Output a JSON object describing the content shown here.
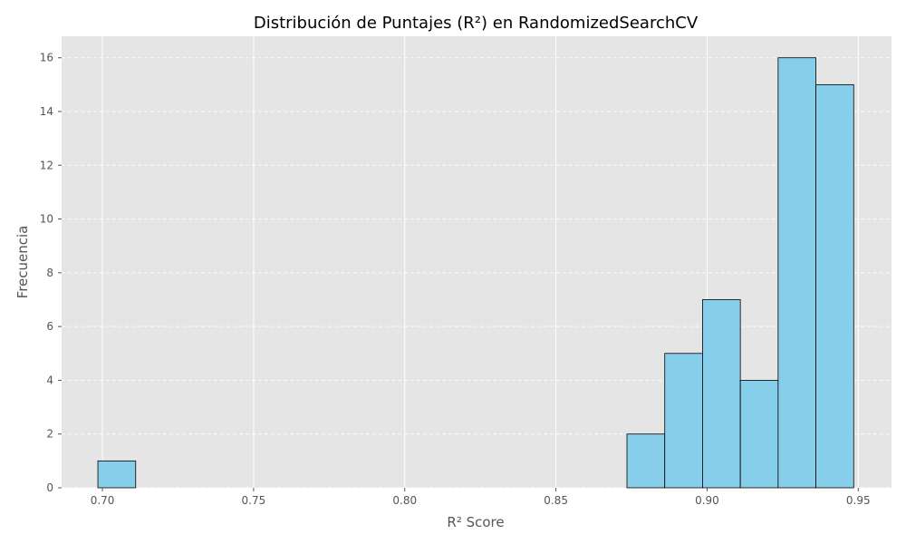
{
  "chart_data": {
    "type": "bar",
    "title": "Distribución de Puntajes (R²) en RandomizedSearchCV",
    "xlabel": "R² Score",
    "ylabel": "Frecuencia",
    "xlim": [
      0.6865,
      0.961
    ],
    "ylim": [
      0,
      16.8
    ],
    "xticks": [
      0.7,
      0.75,
      0.8,
      0.85,
      0.9,
      0.95
    ],
    "xtick_labels": [
      "0.70",
      "0.75",
      "0.80",
      "0.85",
      "0.90",
      "0.95"
    ],
    "yticks": [
      0,
      2,
      4,
      6,
      8,
      10,
      12,
      14,
      16
    ],
    "ytick_labels": [
      "0",
      "2",
      "4",
      "6",
      "8",
      "10",
      "12",
      "14",
      "16"
    ],
    "bins": [
      {
        "x0": 0.6985,
        "x1": 0.711,
        "count": 1
      },
      {
        "x0": 0.711,
        "x1": 0.7235,
        "count": 0
      },
      {
        "x0": 0.7235,
        "x1": 0.736,
        "count": 0
      },
      {
        "x0": 0.736,
        "x1": 0.7485,
        "count": 0
      },
      {
        "x0": 0.7485,
        "x1": 0.761,
        "count": 0
      },
      {
        "x0": 0.761,
        "x1": 0.7735,
        "count": 0
      },
      {
        "x0": 0.7735,
        "x1": 0.786,
        "count": 0
      },
      {
        "x0": 0.786,
        "x1": 0.7985,
        "count": 0
      },
      {
        "x0": 0.7985,
        "x1": 0.811,
        "count": 0
      },
      {
        "x0": 0.811,
        "x1": 0.8235,
        "count": 0
      },
      {
        "x0": 0.8235,
        "x1": 0.836,
        "count": 0
      },
      {
        "x0": 0.836,
        "x1": 0.8485,
        "count": 0
      },
      {
        "x0": 0.8485,
        "x1": 0.861,
        "count": 0
      },
      {
        "x0": 0.861,
        "x1": 0.8735,
        "count": 0
      },
      {
        "x0": 0.8735,
        "x1": 0.886,
        "count": 2
      },
      {
        "x0": 0.886,
        "x1": 0.8985,
        "count": 5
      },
      {
        "x0": 0.8985,
        "x1": 0.911,
        "count": 7
      },
      {
        "x0": 0.911,
        "x1": 0.9235,
        "count": 4
      },
      {
        "x0": 0.9235,
        "x1": 0.936,
        "count": 16
      },
      {
        "x0": 0.936,
        "x1": 0.9485,
        "count": 15
      }
    ],
    "grid": true,
    "colors": {
      "bar_fill": "#87CEEB",
      "bar_edge": "#000000",
      "plot_background": "#E5E5E5",
      "grid": "#FFFFFF",
      "text": "#555555"
    }
  }
}
